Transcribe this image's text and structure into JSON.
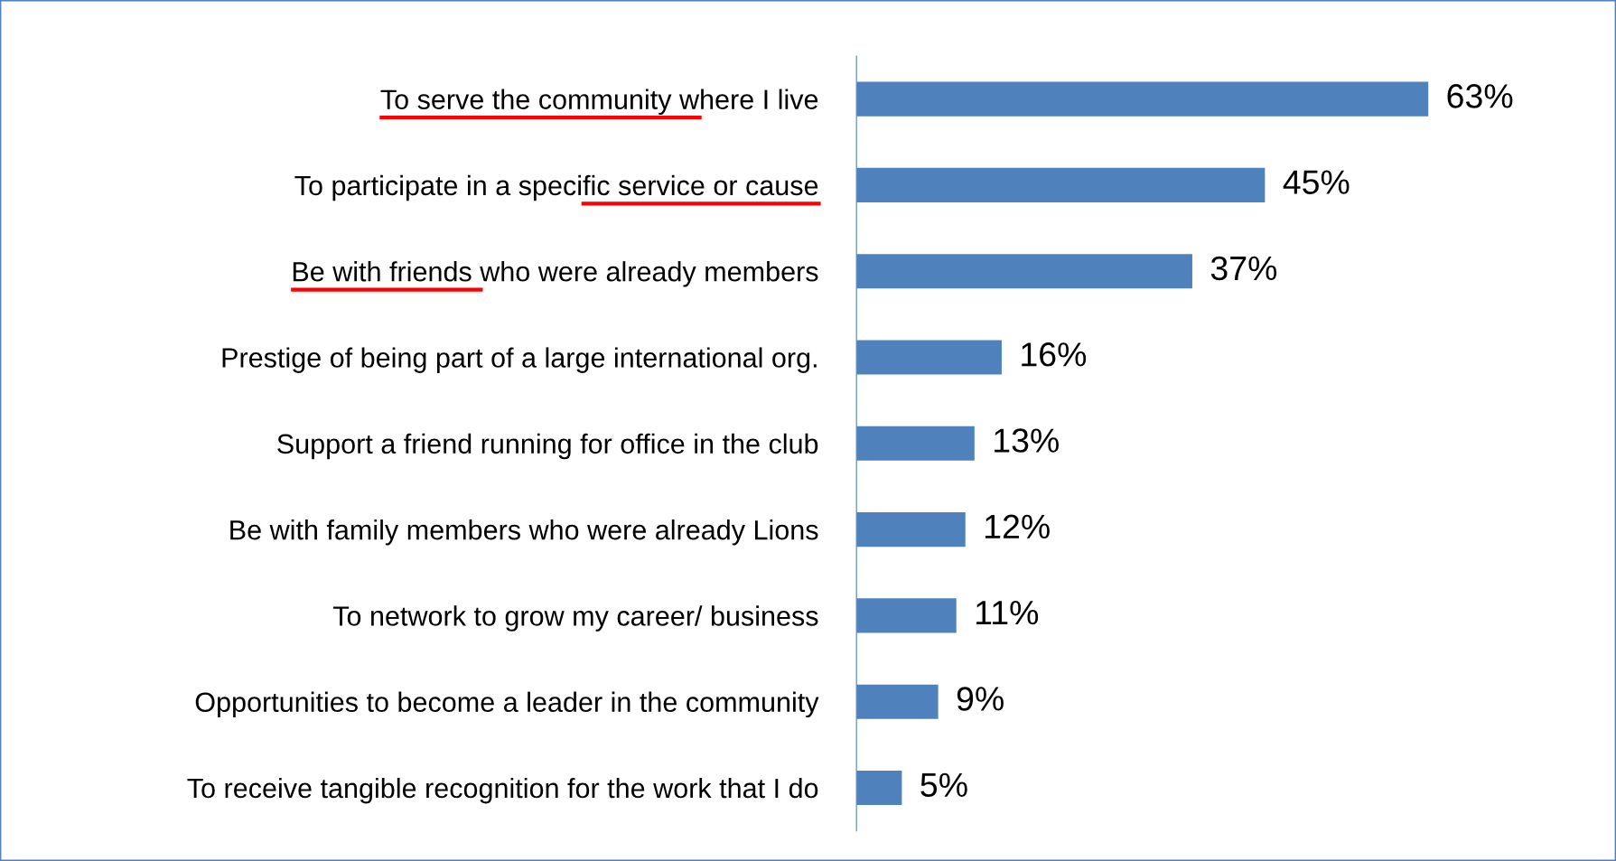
{
  "chart_data": {
    "type": "bar",
    "orientation": "horizontal",
    "categories": [
      "To serve the community where I live",
      "To participate in a specific service or cause",
      "Be with friends who were already members",
      "Prestige of being part of a large international org.",
      "Support a friend running for office in the club",
      "Be with family members who were already Lions",
      "To network to grow my career/ business",
      "Opportunities to become a leader in the community",
      "To receive tangible recognition for the work that I do"
    ],
    "values": [
      63,
      45,
      37,
      16,
      13,
      12,
      11,
      9,
      5
    ],
    "value_labels": [
      "63%",
      "45%",
      "37%",
      "16%",
      "13%",
      "12%",
      "11%",
      "9%",
      "5%"
    ],
    "color": "#4f81bd",
    "grid": false,
    "legend": false
  }
}
